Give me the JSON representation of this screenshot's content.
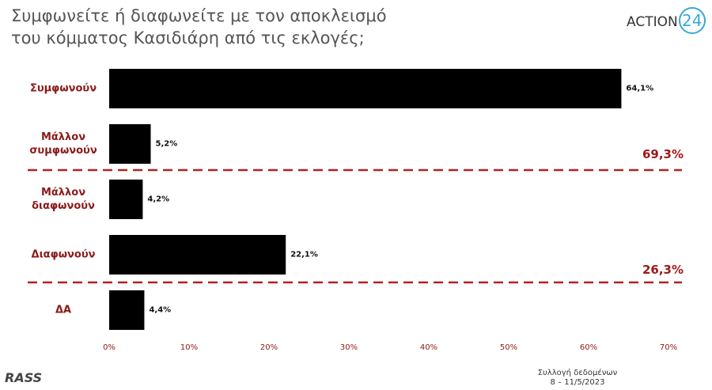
{
  "chart_data": {
    "type": "bar",
    "orientation": "horizontal",
    "title": [
      "Συμφωνείτε ή διαφωνείτε με τον αποκλεισμό",
      "του κόμματος Κασιδιάρη από τις εκλογές;"
    ],
    "logo": {
      "text": "ACTION",
      "number": "24"
    },
    "categories": [
      "Συμφωνούν",
      "Μάλλον συμφωνούν",
      "Μάλλον διαφωνούν",
      "Διαφωνούν",
      "ΔΑ"
    ],
    "values": [
      64.1,
      5.2,
      4.2,
      22.1,
      4.4
    ],
    "value_labels": [
      "64,1%",
      "5,2%",
      "4,2%",
      "22,1%",
      "4,4%"
    ],
    "color": "#000000",
    "xlim": [
      0,
      70
    ],
    "xticks": [
      {
        "value": 0,
        "label": "0%"
      },
      {
        "value": 10,
        "label": "10%"
      },
      {
        "value": 20,
        "label": "20%"
      },
      {
        "value": 30,
        "label": "30%"
      },
      {
        "value": 40,
        "label": "40%"
      },
      {
        "value": 50,
        "label": "50%"
      },
      {
        "value": 60,
        "label": "60%"
      },
      {
        "value": 70,
        "label": "70%"
      }
    ],
    "group_totals": [
      {
        "value": 69.3,
        "label": "69,3%"
      },
      {
        "value": 26.3,
        "label": "26,3%"
      }
    ],
    "source": "RASS",
    "note": [
      "Συλλογή δεδομένων",
      "8 – 11/5/2023"
    ]
  }
}
